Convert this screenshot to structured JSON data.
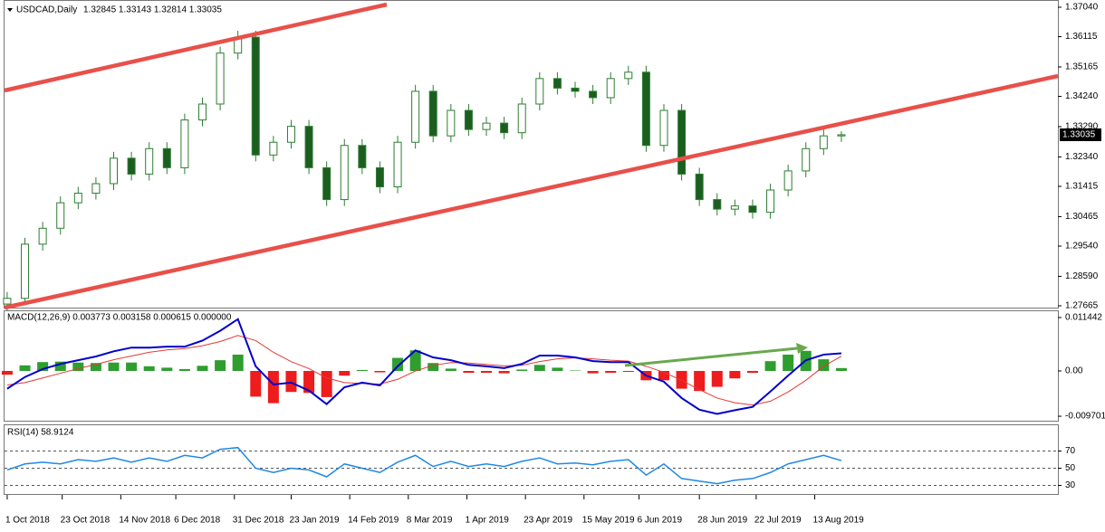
{
  "chart_data": [
    {
      "type": "candlestick",
      "title": "USDCAD,Daily",
      "subtitle": "1.32845 1.33143 1.32814 1.33035",
      "open": [
        1.2772,
        1.279,
        1.296,
        1.301,
        1.309,
        1.312,
        1.315,
        1.323,
        1.318,
        1.326,
        1.32,
        1.335,
        1.34,
        1.356,
        1.361,
        1.324,
        1.328,
        1.333,
        1.32,
        1.31,
        1.327,
        1.32,
        1.314,
        1.328,
        1.344,
        1.33,
        1.338,
        1.332,
        1.334,
        1.331,
        1.34,
        1.348,
        1.345,
        1.344,
        1.342,
        1.348,
        1.35,
        1.327,
        1.338,
        1.318,
        1.31,
        1.307,
        1.308,
        1.306,
        1.313,
        1.319,
        1.326,
        1.33
      ],
      "high": [
        1.281,
        1.298,
        1.303,
        1.311,
        1.314,
        1.317,
        1.325,
        1.325,
        1.328,
        1.328,
        1.337,
        1.342,
        1.358,
        1.363,
        1.363,
        1.33,
        1.335,
        1.335,
        1.322,
        1.329,
        1.329,
        1.322,
        1.33,
        1.346,
        1.346,
        1.34,
        1.34,
        1.336,
        1.336,
        1.342,
        1.35,
        1.35,
        1.347,
        1.346,
        1.35,
        1.352,
        1.352,
        1.34,
        1.34,
        1.32,
        1.312,
        1.31,
        1.31,
        1.315,
        1.321,
        1.328,
        1.332,
        1.33143
      ],
      "low": [
        1.2752,
        1.277,
        1.294,
        1.299,
        1.307,
        1.31,
        1.313,
        1.316,
        1.316,
        1.318,
        1.318,
        1.333,
        1.338,
        1.354,
        1.322,
        1.322,
        1.326,
        1.318,
        1.308,
        1.308,
        1.318,
        1.312,
        1.312,
        1.326,
        1.328,
        1.328,
        1.33,
        1.33,
        1.329,
        1.329,
        1.338,
        1.343,
        1.342,
        1.34,
        1.34,
        1.346,
        1.325,
        1.325,
        1.316,
        1.308,
        1.305,
        1.305,
        1.304,
        1.304,
        1.311,
        1.317,
        1.324,
        1.32814
      ],
      "close": [
        1.279,
        1.296,
        1.301,
        1.309,
        1.312,
        1.315,
        1.323,
        1.318,
        1.326,
        1.32,
        1.335,
        1.34,
        1.356,
        1.361,
        1.324,
        1.328,
        1.333,
        1.32,
        1.31,
        1.327,
        1.32,
        1.314,
        1.328,
        1.344,
        1.33,
        1.338,
        1.332,
        1.334,
        1.331,
        1.34,
        1.348,
        1.345,
        1.344,
        1.342,
        1.348,
        1.35,
        1.327,
        1.338,
        1.318,
        1.31,
        1.307,
        1.308,
        1.306,
        1.313,
        1.319,
        1.326,
        1.33,
        1.33035
      ],
      "up_color": "#ffffff",
      "down_color": "#1b5e20",
      "wick_color": "#2e7d32",
      "xlim": [
        -0.15,
        59.2
      ],
      "xticks": [
        {
          "value": 0,
          "label": "1 Oct 2018"
        },
        {
          "value": 3.1,
          "label": "23 Oct 2018"
        },
        {
          "value": 6.4,
          "label": "14 Nov 2018"
        },
        {
          "value": 9.5,
          "label": "6 Dec 2018"
        },
        {
          "value": 12.8,
          "label": "31 Dec 2018"
        },
        {
          "value": 16,
          "label": "23 Jan 2019"
        },
        {
          "value": 19.3,
          "label": "14 Feb 2019"
        },
        {
          "value": 22.6,
          "label": "8 Mar 2019"
        },
        {
          "value": 25.9,
          "label": "1 Apr 2019"
        },
        {
          "value": 29.2,
          "label": "23 Apr 2019"
        },
        {
          "value": 32.5,
          "label": "15 May 2019"
        },
        {
          "value": 35.6,
          "label": "6 Jun 2019"
        },
        {
          "value": 39,
          "label": "28 Jun 2019"
        },
        {
          "value": 42.2,
          "label": "22 Jul 2019"
        },
        {
          "value": 45.5,
          "label": "13 Aug 2019"
        }
      ],
      "ylim": [
        1.27608,
        1.37238
      ],
      "yticks": [
        {
          "value": 1.3704,
          "label": "1.37040"
        },
        1.36115,
        1.35165,
        {
          "value": 1.3424,
          "label": "1.34240"
        },
        {
          "value": 1.3329,
          "label": "1.33290"
        },
        {
          "value": 1.3234,
          "label": "1.32340"
        },
        1.31415,
        1.30465,
        {
          "value": 1.2954,
          "label": "1.29540"
        },
        {
          "value": 1.2859,
          "label": "1.28590"
        },
        1.27665
      ],
      "last_price": {
        "value": 1.33035,
        "label": "1.33035"
      }
    },
    {
      "type": "macd",
      "title": "MACD(12,26,9) 0.003773 0.003158 0.000615 0.000000",
      "macd": [
        -0.0038,
        -0.0013,
        0.0004,
        0.0015,
        0.0023,
        0.0031,
        0.0042,
        0.005,
        0.005,
        0.0052,
        0.0052,
        0.0065,
        0.0086,
        0.0111,
        0.001,
        -0.0029,
        -0.0025,
        -0.0042,
        -0.0071,
        -0.0035,
        -0.0025,
        -0.0031,
        0.001,
        0.0044,
        0.0029,
        0.0023,
        0.0013,
        0.001,
        0.0006,
        0.0015,
        0.0033,
        0.0033,
        0.0029,
        0.0021,
        0.0019,
        0.0019,
        -0.001,
        -0.0023,
        -0.0058,
        -0.0083,
        -0.0092,
        -0.0084,
        -0.0077,
        -0.0044,
        -0.001,
        0.0023,
        0.0035,
        0.003773
      ],
      "signal": [
        -0.003,
        -0.0025,
        -0.0015,
        -0.0005,
        0.0005,
        0.0014,
        0.0024,
        0.0032,
        0.004,
        0.0045,
        0.0048,
        0.0054,
        0.0063,
        0.0076,
        0.0065,
        0.004,
        0.002,
        0.0005,
        -0.0015,
        -0.0025,
        -0.0027,
        -0.0028,
        -0.0018,
        0.0,
        0.0012,
        0.0018,
        0.0017,
        0.0014,
        0.0011,
        0.0012,
        0.002,
        0.0026,
        0.0028,
        0.0026,
        0.0023,
        0.0021,
        0.001,
        -0.0003,
        -0.002,
        -0.004,
        -0.0058,
        -0.0068,
        -0.0073,
        -0.0065,
        -0.0045,
        -0.002,
        0.001,
        0.003158
      ],
      "histogram": [
        -0.0008,
        0.0012,
        0.0019,
        0.002,
        0.0018,
        0.0017,
        0.0018,
        0.0018,
        0.001,
        0.0007,
        0.0004,
        0.0011,
        0.0023,
        0.0035,
        -0.0055,
        -0.0069,
        -0.0045,
        -0.0047,
        -0.0056,
        -0.001,
        0.0002,
        -0.0003,
        0.0028,
        0.0044,
        0.0017,
        0.0005,
        -0.0004,
        -0.0004,
        -0.0005,
        0.0003,
        0.0013,
        0.0007,
        0.0001,
        -0.0005,
        -0.0004,
        -0.0002,
        -0.002,
        -0.002,
        -0.0038,
        -0.0043,
        -0.0034,
        -0.0016,
        -0.0004,
        0.0021,
        0.0035,
        0.0043,
        0.0025,
        0.000615
      ],
      "macd_color": "#0000cc",
      "signal_color": "#e53935",
      "up_color": "#2e9e2e",
      "down_color": "#ee1c1c",
      "ylim": [
        -0.01066,
        0.01279
      ],
      "yticks": [
        0.011442,
        {
          "value": 0,
          "label": "0.00"
        },
        -0.009701
      ]
    },
    {
      "type": "line",
      "title": "RSI(14) 58.9124",
      "values": [
        48,
        55,
        57,
        55,
        60,
        58,
        62,
        57,
        62,
        58,
        65,
        62,
        72,
        74,
        50,
        45,
        50,
        48,
        40,
        55,
        50,
        45,
        57,
        65,
        52,
        58,
        52,
        55,
        52,
        58,
        62,
        55,
        56,
        54,
        58,
        60,
        42,
        55,
        38,
        35,
        32,
        36,
        38,
        45,
        55,
        60,
        65,
        58.9124
      ],
      "color": "#1e88e5",
      "ylim": [
        20,
        100
      ],
      "yticks": [
        30,
        50,
        70
      ],
      "grid": true
    }
  ]
}
